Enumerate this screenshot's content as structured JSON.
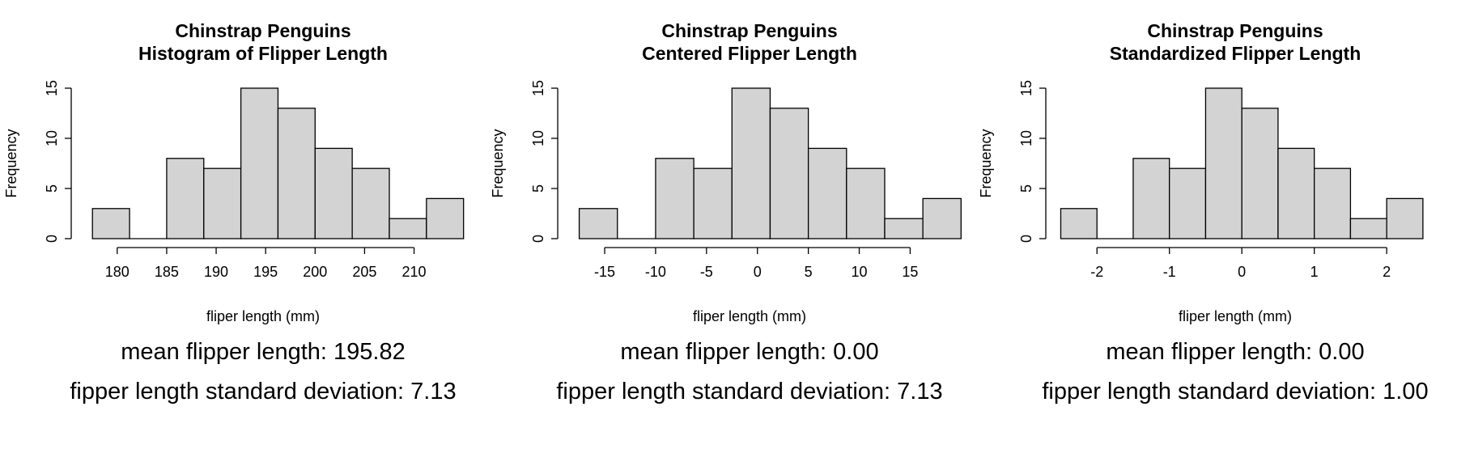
{
  "chart_data": [
    {
      "type": "bar",
      "title": "Chinstrap Penguins",
      "subtitle": "Histogram of Flipper Length",
      "xlabel": "fliper length (mm)",
      "ylabel": "Frequency",
      "bins": [
        [
          177.5,
          181.25
        ],
        [
          181.25,
          185
        ],
        [
          185,
          188.75
        ],
        [
          188.75,
          192.5
        ],
        [
          192.5,
          196.25
        ],
        [
          196.25,
          200
        ],
        [
          200,
          203.75
        ],
        [
          203.75,
          207.5
        ],
        [
          207.5,
          211.25
        ],
        [
          211.25,
          215
        ]
      ],
      "values": [
        3,
        0,
        8,
        7,
        15,
        13,
        9,
        7,
        2,
        4
      ],
      "xlim": [
        176.5,
        212
      ],
      "ylim": [
        0,
        15
      ],
      "xticks": [
        180,
        185,
        190,
        195,
        200,
        205,
        210
      ],
      "xtick_labels": [
        "180",
        "185",
        "190",
        "195",
        "200",
        "205",
        "210"
      ],
      "yticks": [
        0,
        5,
        10,
        15
      ],
      "ytick_labels": [
        "0",
        "5",
        "10",
        "15"
      ],
      "bar_color": "#d3d3d3",
      "stat_mean": "mean flipper length: 195.82",
      "stat_sd": "fipper length standard deviation: 7.13"
    },
    {
      "type": "bar",
      "title": "Chinstrap Penguins",
      "subtitle": "Centered Flipper Length",
      "xlabel": "fliper length (mm)",
      "ylabel": "Frequency",
      "bins": [
        [
          -17.5,
          -13.75
        ],
        [
          -13.75,
          -10
        ],
        [
          -10,
          -6.25
        ],
        [
          -6.25,
          -2.5
        ],
        [
          -2.5,
          1.25
        ],
        [
          1.25,
          5
        ],
        [
          5,
          8.75
        ],
        [
          8.75,
          12.5
        ],
        [
          12.5,
          16.25
        ],
        [
          16.25,
          20
        ]
      ],
      "values": [
        3,
        0,
        8,
        7,
        15,
        13,
        9,
        7,
        2,
        4
      ],
      "xlim": [
        -18.5,
        16
      ],
      "ylim": [
        0,
        15
      ],
      "xticks": [
        -15,
        -10,
        -5,
        0,
        5,
        10,
        15
      ],
      "xtick_labels": [
        "-15",
        "-10",
        "-5",
        "0",
        "5",
        "10",
        "15"
      ],
      "yticks": [
        0,
        5,
        10,
        15
      ],
      "ytick_labels": [
        "0",
        "5",
        "10",
        "15"
      ],
      "bar_color": "#d3d3d3",
      "stat_mean": "mean flipper length: 0.00",
      "stat_sd": "fipper length standard deviation: 7.13"
    },
    {
      "type": "bar",
      "title": "Chinstrap Penguins",
      "subtitle": "Standardized Flipper Length",
      "xlabel": "fliper length (mm)",
      "ylabel": "Frequency",
      "bins": [
        [
          -2.5,
          -2.0
        ],
        [
          -2.0,
          -1.5
        ],
        [
          -1.5,
          -1.0
        ],
        [
          -1.0,
          -0.5
        ],
        [
          -0.5,
          0.0
        ],
        [
          0.0,
          0.5
        ],
        [
          0.5,
          1.0
        ],
        [
          1.0,
          1.5
        ],
        [
          1.5,
          2.0
        ],
        [
          2.0,
          2.5
        ]
      ],
      "values": [
        3,
        0,
        8,
        7,
        15,
        13,
        9,
        7,
        2,
        4
      ],
      "xlim": [
        -2.55,
        2.3
      ],
      "ylim": [
        0,
        15
      ],
      "xticks": [
        -2,
        -1,
        0,
        1,
        2
      ],
      "xtick_labels": [
        "-2",
        "-1",
        "0",
        "1",
        "2"
      ],
      "yticks": [
        0,
        5,
        10,
        15
      ],
      "ytick_labels": [
        "0",
        "5",
        "10",
        "15"
      ],
      "bar_color": "#d3d3d3",
      "stat_mean": "mean flipper length: 0.00",
      "stat_sd": "fipper length standard deviation: 1.00"
    }
  ]
}
